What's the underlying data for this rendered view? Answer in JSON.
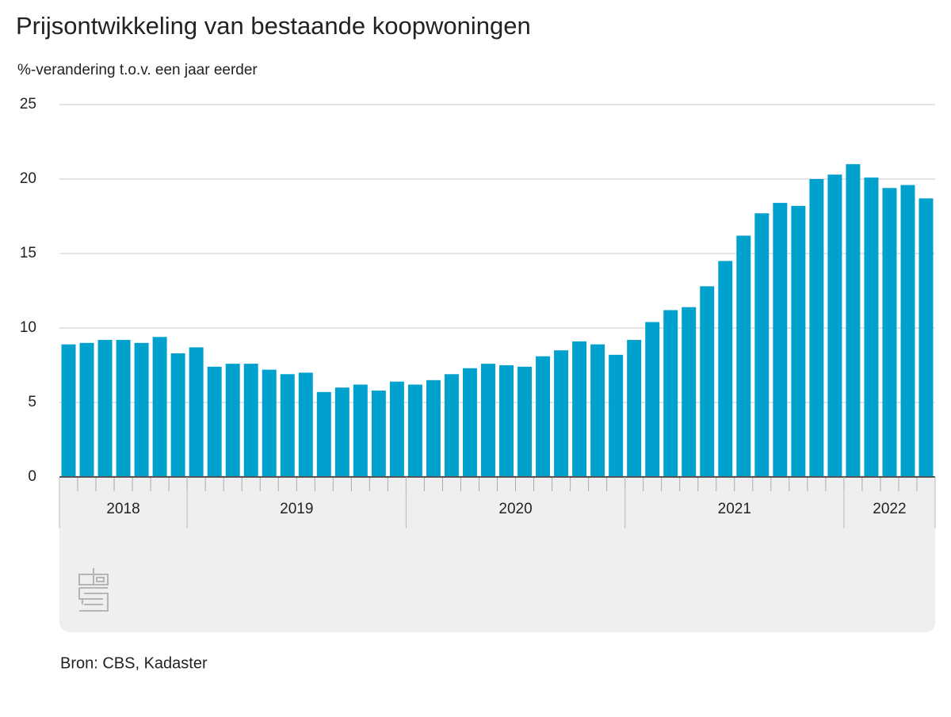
{
  "chart_data": {
    "type": "bar",
    "title": "Prijsontwikkeling van bestaande koopwoningen",
    "subtitle": "%-verandering t.o.v. een jaar eerder",
    "source": "Bron: CBS, Kadaster",
    "color": "#00a1cd",
    "grid": true,
    "ylim": [
      0,
      25
    ],
    "yticks": [
      0,
      5,
      10,
      15,
      20,
      25
    ],
    "categories": [
      null,
      null,
      null,
      null,
      null,
      null,
      null,
      null,
      null,
      null,
      null,
      null,
      null,
      null,
      null,
      null,
      null,
      null,
      null,
      null,
      null,
      null,
      null,
      null,
      null,
      null,
      null,
      null,
      null,
      null,
      null,
      null,
      null,
      null,
      null,
      null,
      null,
      null,
      null,
      null,
      null,
      null,
      null,
      null,
      null,
      null,
      null,
      null
    ],
    "x_groups": [
      {
        "label": "2018",
        "span": 7
      },
      {
        "label": "2019",
        "span": 12
      },
      {
        "label": "2020",
        "span": 12
      },
      {
        "label": "2021",
        "span": 12
      },
      {
        "label": "2022",
        "span": 5
      }
    ],
    "values": [
      8.9,
      9.0,
      9.2,
      9.2,
      9.0,
      9.4,
      8.3,
      8.7,
      7.4,
      7.6,
      7.6,
      7.2,
      6.9,
      7.0,
      5.7,
      6.0,
      6.2,
      5.8,
      6.4,
      6.2,
      6.5,
      6.9,
      7.3,
      7.6,
      7.5,
      7.4,
      8.1,
      8.5,
      9.1,
      8.9,
      8.2,
      9.2,
      10.4,
      11.2,
      11.4,
      12.8,
      14.5,
      16.2,
      17.7,
      18.4,
      18.2,
      20.0,
      20.3,
      21.0,
      20.1,
      19.4,
      19.6,
      18.7
    ]
  }
}
